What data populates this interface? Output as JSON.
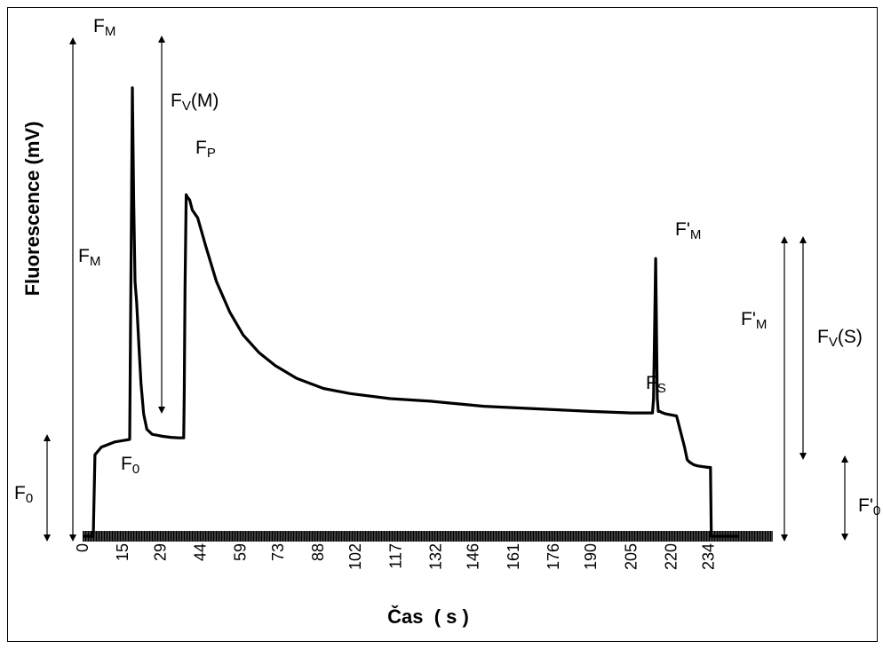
{
  "chart_data": {
    "type": "line",
    "xlabel": "Čas  ( s )",
    "ylabel": "Fluorescence (mV)",
    "xlim": [
      0,
      258
    ],
    "ylim": [
      0,
      100
    ],
    "x_tick_labels": [
      "0",
      "15",
      "29",
      "44",
      "59",
      "73",
      "88",
      "102",
      "117",
      "132",
      "146",
      "161",
      "176",
      "190",
      "205",
      "220",
      "234"
    ],
    "x_tick_values": [
      0,
      15,
      29,
      44,
      59,
      73,
      88,
      102,
      117,
      132,
      146,
      161,
      176,
      190,
      205,
      220,
      234
    ],
    "grid": false,
    "series": [
      {
        "x": [
          0,
          4,
          4,
          4.6,
          7,
          12,
          17.6,
          17.9,
          18.3,
          18.6,
          19.1,
          19.6,
          20.2,
          21,
          21.8,
          22.8,
          24,
          26,
          28,
          30,
          33,
          36,
          37.8,
          38,
          38.3,
          38.7,
          39.2,
          40,
          41,
          43,
          46,
          50,
          55,
          60,
          66,
          72,
          80,
          90,
          100,
          115,
          130,
          150,
          170,
          190,
          205,
          213,
          213.4,
          214.2,
          214.8,
          215.2,
          215.8,
          216.4,
          218,
          222,
          225,
          226,
          227,
          228.5,
          230,
          234,
          234.7,
          235,
          245
        ],
        "y": [
          0,
          0,
          0,
          16,
          17.5,
          18.5,
          19,
          40,
          66,
          88,
          66,
          50,
          46,
          38,
          30,
          24,
          21,
          20,
          19.8,
          19.6,
          19.4,
          19.3,
          19.3,
          28,
          49,
          67,
          66.5,
          66,
          64,
          62.5,
          57,
          50,
          44,
          39.5,
          36,
          33.5,
          31,
          29,
          28,
          27,
          26.5,
          25.5,
          25,
          24.5,
          24.2,
          24.2,
          27,
          54.5,
          27,
          24.5,
          24.5,
          24.3,
          24,
          23.6,
          17.5,
          15,
          14.5,
          14,
          13.8,
          13.5,
          13.5,
          0,
          0
        ]
      }
    ],
    "annotations": {
      "fm_top": {
        "main": "F",
        "sub": "M"
      },
      "fv_m": {
        "main": "F",
        "sub": "V",
        "suffix": "(M)"
      },
      "fp": {
        "main": "F",
        "sub": "P"
      },
      "fm_left": {
        "main": "F",
        "sub": "M"
      },
      "f0_left": {
        "main": "F",
        "sub": "0"
      },
      "f0_curve": {
        "main": "F",
        "sub": "0"
      },
      "fpm_top": {
        "main": "F'",
        "sub": "M"
      },
      "fpm_right": {
        "main": "F'",
        "sub": "M"
      },
      "fv_s": {
        "main": "F",
        "sub": "V",
        "suffix": "(S)"
      },
      "fs": {
        "main": "F",
        "sub": "S"
      },
      "fp0": {
        "main": "F'",
        "sub": "0"
      }
    }
  }
}
